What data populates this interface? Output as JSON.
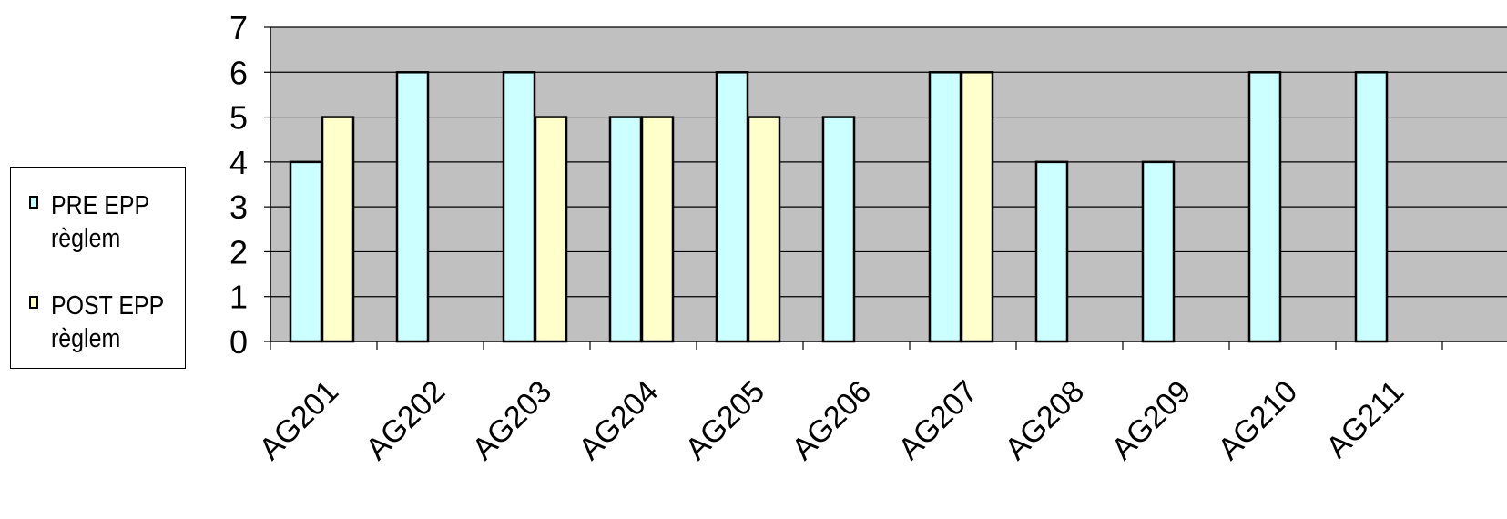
{
  "chart_data": {
    "type": "bar",
    "categories": [
      "AG201",
      "AG202",
      "AG203",
      "AG204",
      "AG205",
      "AG206",
      "AG207",
      "AG208",
      "AG209",
      "AG210",
      "AG211"
    ],
    "series": [
      {
        "name": "PRE EPP règlem",
        "values": [
          4,
          6,
          6,
          5,
          6,
          5,
          6,
          4,
          4,
          6,
          6
        ]
      },
      {
        "name": "POST EPP règlem",
        "values": [
          5,
          null,
          5,
          5,
          5,
          null,
          6,
          null,
          null,
          null,
          null
        ]
      }
    ],
    "title": "",
    "xlabel": "",
    "ylabel": "",
    "ylim": [
      0,
      7
    ],
    "yticks": [
      "0",
      "1",
      "2",
      "3",
      "4",
      "5",
      "6",
      "7"
    ],
    "grid": true,
    "legend_position": "left",
    "colors": {
      "plot_background": "#c0c0c0",
      "pre": "#ccffff",
      "post": "#ffffcc",
      "outline": "#000000"
    }
  },
  "legend": {
    "items": [
      {
        "label": "PRE EPP\nrèglem"
      },
      {
        "label": "POST EPP\nrèglem"
      }
    ]
  }
}
